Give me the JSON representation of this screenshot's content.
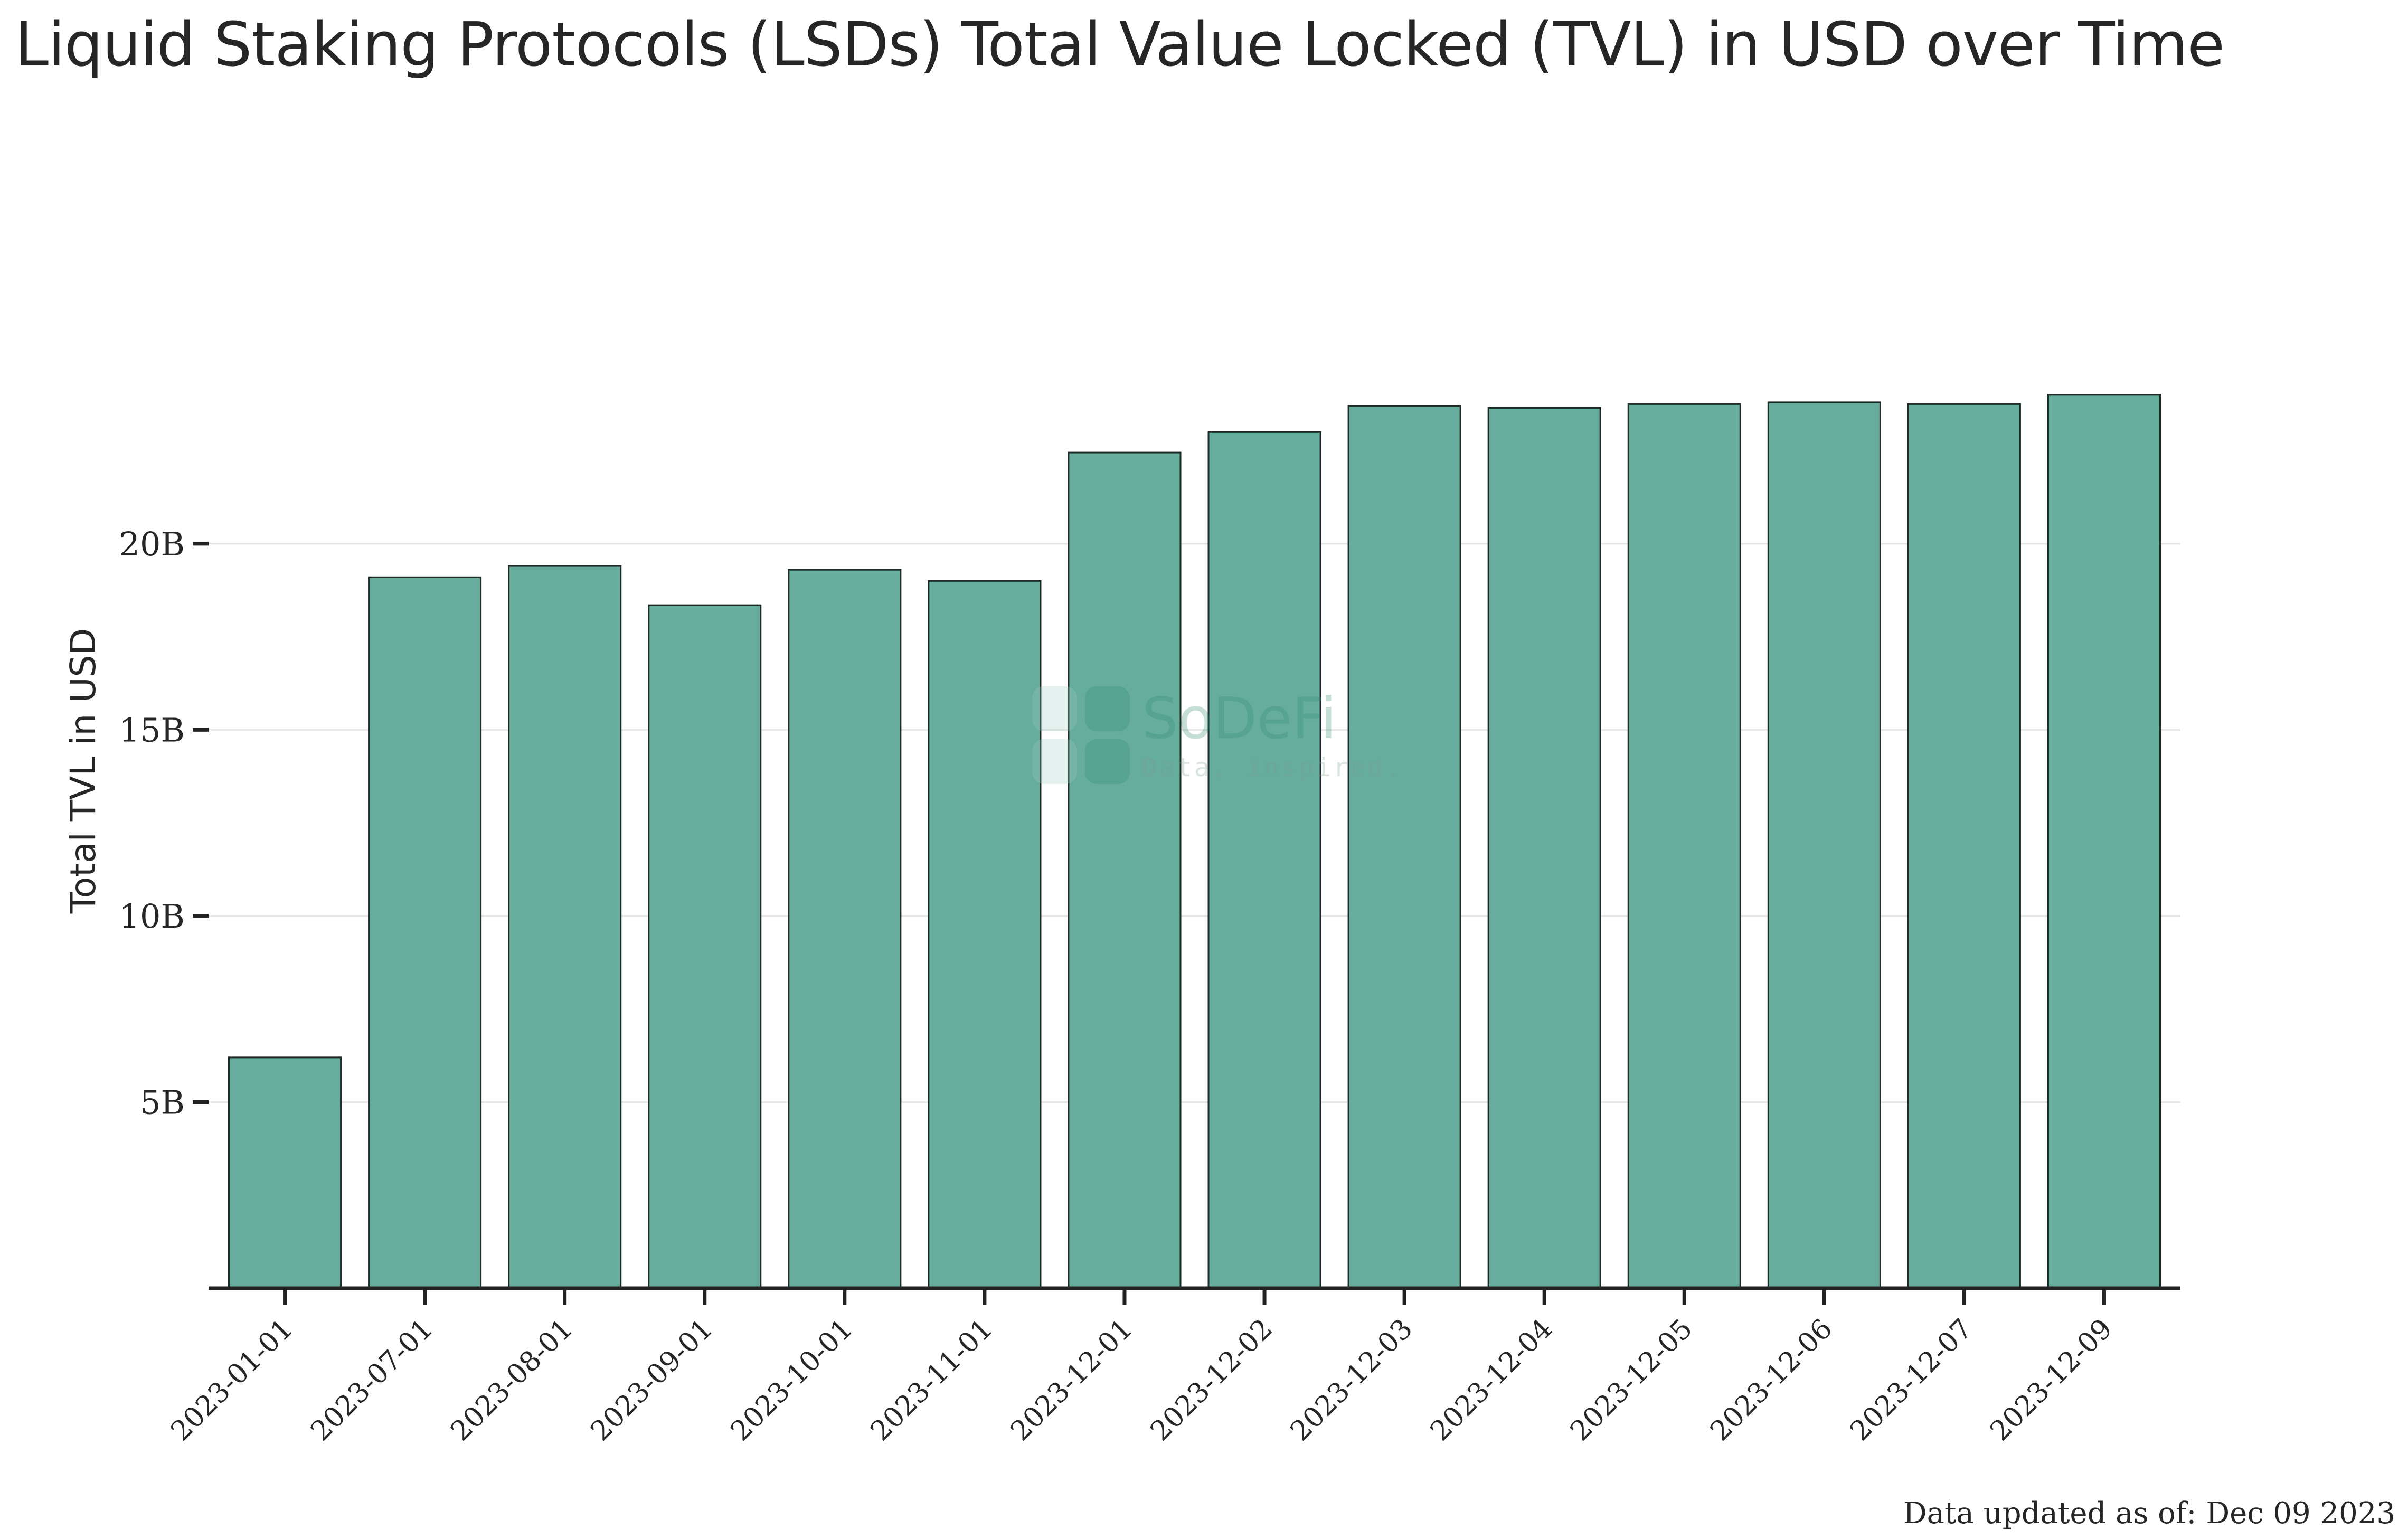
{
  "chart_data": {
    "type": "bar",
    "title": "Liquid Staking Protocols (LSDs) Total Value Locked (TVL) in USD over Time",
    "xlabel": "",
    "ylabel": "Total TVL in USD",
    "categories": [
      "2023-01-01",
      "2023-07-01",
      "2023-08-01",
      "2023-09-01",
      "2023-10-01",
      "2023-11-01",
      "2023-12-01",
      "2023-12-02",
      "2023-12-03",
      "2023-12-04",
      "2023-12-05",
      "2023-12-06",
      "2023-12-07",
      "2023-12-09"
    ],
    "values": [
      6.2,
      19.1,
      19.4,
      18.35,
      19.3,
      19.0,
      22.45,
      23.0,
      23.7,
      23.65,
      23.75,
      23.8,
      23.75,
      24.0
    ],
    "value_unit": "B USD",
    "yticks": [
      5,
      10,
      15,
      20
    ],
    "ytick_labels": [
      "5B",
      "10B",
      "15B",
      "20B"
    ],
    "ylim": [
      0,
      29.5
    ],
    "grid": "horizontal",
    "bar_color": "#66ad9e",
    "bar_edge_color": "#1e2a26"
  },
  "watermark": {
    "name": "SoDeFi",
    "tagline": "Data, inspired."
  },
  "footer": {
    "updated": "Data updated as of: Dec 09 2023"
  }
}
